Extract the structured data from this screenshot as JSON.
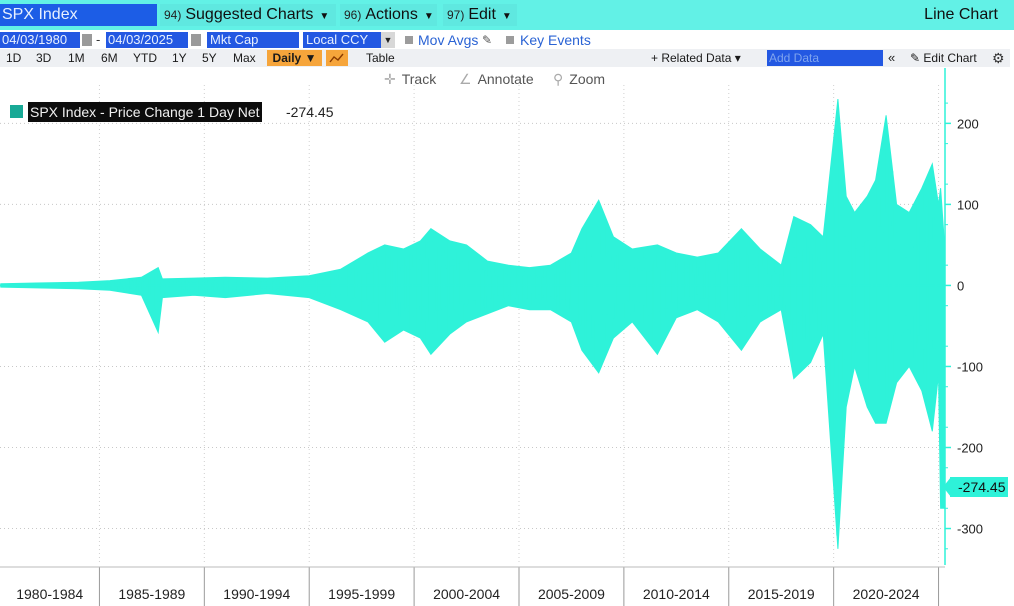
{
  "topbar": {
    "ticker": "SPX Index",
    "suggested": {
      "num": "94)",
      "label": "Suggested Charts"
    },
    "actions": {
      "num": "96)",
      "label": "Actions"
    },
    "edit": {
      "num": "97)",
      "label": "Edit"
    },
    "chart_type": "Line Chart"
  },
  "controls": {
    "start_date": "04/03/1980",
    "end_date": "04/03/2025",
    "separator": "-",
    "field1": "Mkt Cap",
    "field2": "Local CCY",
    "mov_avgs": "Mov Avgs",
    "key_events": "Key Events"
  },
  "periods": [
    "1D",
    "3D",
    "1M",
    "6M",
    "YTD",
    "1Y",
    "5Y",
    "Max"
  ],
  "frequency": "Daily ▼",
  "table_label": "Table",
  "related_data": "+ Related Data ▾",
  "add_data_placeholder": "Add Data",
  "edit_chart": "Edit Chart",
  "tools": {
    "track": "Track",
    "annotate": "Annotate",
    "zoom": "Zoom"
  },
  "legend": {
    "label": "SPX Index - Price Change 1 Day Net",
    "value": "-274.45"
  },
  "last_value_tag": "-274.45",
  "colors": {
    "series": "#2ef2d9",
    "accent_blue": "#2358e2",
    "topbar": "#62f1e6",
    "active_tab": "#f6a53b"
  },
  "icons": {
    "mov_avgs_edit": "pencil-icon",
    "track": "crosshair-icon",
    "annotate": "annotate-line-icon",
    "zoom": "magnifier-icon",
    "settings": "gear-icon",
    "collapse": "double-chevron-left-icon",
    "edit_chart": "pencil-icon"
  },
  "chart_data": {
    "type": "area",
    "title": "",
    "xlabel": "",
    "ylabel": "",
    "ylim": [
      -345,
      235
    ],
    "xlim": [
      1980.26,
      2025.26
    ],
    "y_ticks": [
      200,
      100,
      0,
      -100,
      -200,
      -300
    ],
    "x_tick_labels": [
      "1980-1984",
      "1985-1989",
      "1990-1994",
      "1995-1999",
      "2000-2004",
      "2005-2009",
      "2010-2014",
      "2015-2019",
      "2020-2024"
    ],
    "x_tick_bounds": [
      1985,
      1990,
      1995,
      2000,
      2005,
      2010,
      2015,
      2020,
      2025
    ],
    "grid": true,
    "series": [
      {
        "name": "SPX Index - Price Change 1 Day Net",
        "envelope": {
          "x": [
            1980.3,
            1982.0,
            1984.0,
            1985.5,
            1987.0,
            1987.8,
            1988.0,
            1989.5,
            1991.0,
            1993.0,
            1995.0,
            1996.5,
            1997.8,
            1998.6,
            1999.5,
            2000.3,
            2000.8,
            2001.7,
            2002.5,
            2003.5,
            2004.5,
            2005.5,
            2006.5,
            2007.5,
            2008.0,
            2008.8,
            2009.5,
            2010.4,
            2011.6,
            2012.5,
            2013.5,
            2014.5,
            2015.6,
            2016.5,
            2017.5,
            2018.1,
            2018.9,
            2019.5,
            2020.2,
            2020.6,
            2021.0,
            2021.6,
            2022.0,
            2022.5,
            2023.0,
            2023.6,
            2024.2,
            2024.7,
            2025.0,
            2025.1,
            2025.26
          ],
          "high": [
            2,
            3,
            4,
            6,
            10,
            22,
            8,
            9,
            10,
            9,
            12,
            20,
            40,
            50,
            45,
            55,
            70,
            55,
            50,
            30,
            25,
            22,
            25,
            40,
            70,
            105,
            60,
            45,
            50,
            40,
            35,
            40,
            70,
            45,
            25,
            85,
            75,
            60,
            230,
            110,
            90,
            110,
            130,
            210,
            100,
            90,
            120,
            150,
            100,
            120,
            60
          ],
          "low": [
            -2,
            -3,
            -4,
            -6,
            -12,
            -58,
            -15,
            -12,
            -15,
            -10,
            -15,
            -30,
            -45,
            -70,
            -55,
            -65,
            -85,
            -60,
            -45,
            -35,
            -25,
            -30,
            -30,
            -45,
            -80,
            -108,
            -65,
            -45,
            -85,
            -40,
            -30,
            -45,
            -80,
            -45,
            -30,
            -115,
            -95,
            -60,
            -325,
            -150,
            -100,
            -150,
            -170,
            -170,
            -120,
            -100,
            -130,
            -180,
            -110,
            -275,
            -275
          ]
        },
        "last_value": -274.45
      }
    ]
  }
}
